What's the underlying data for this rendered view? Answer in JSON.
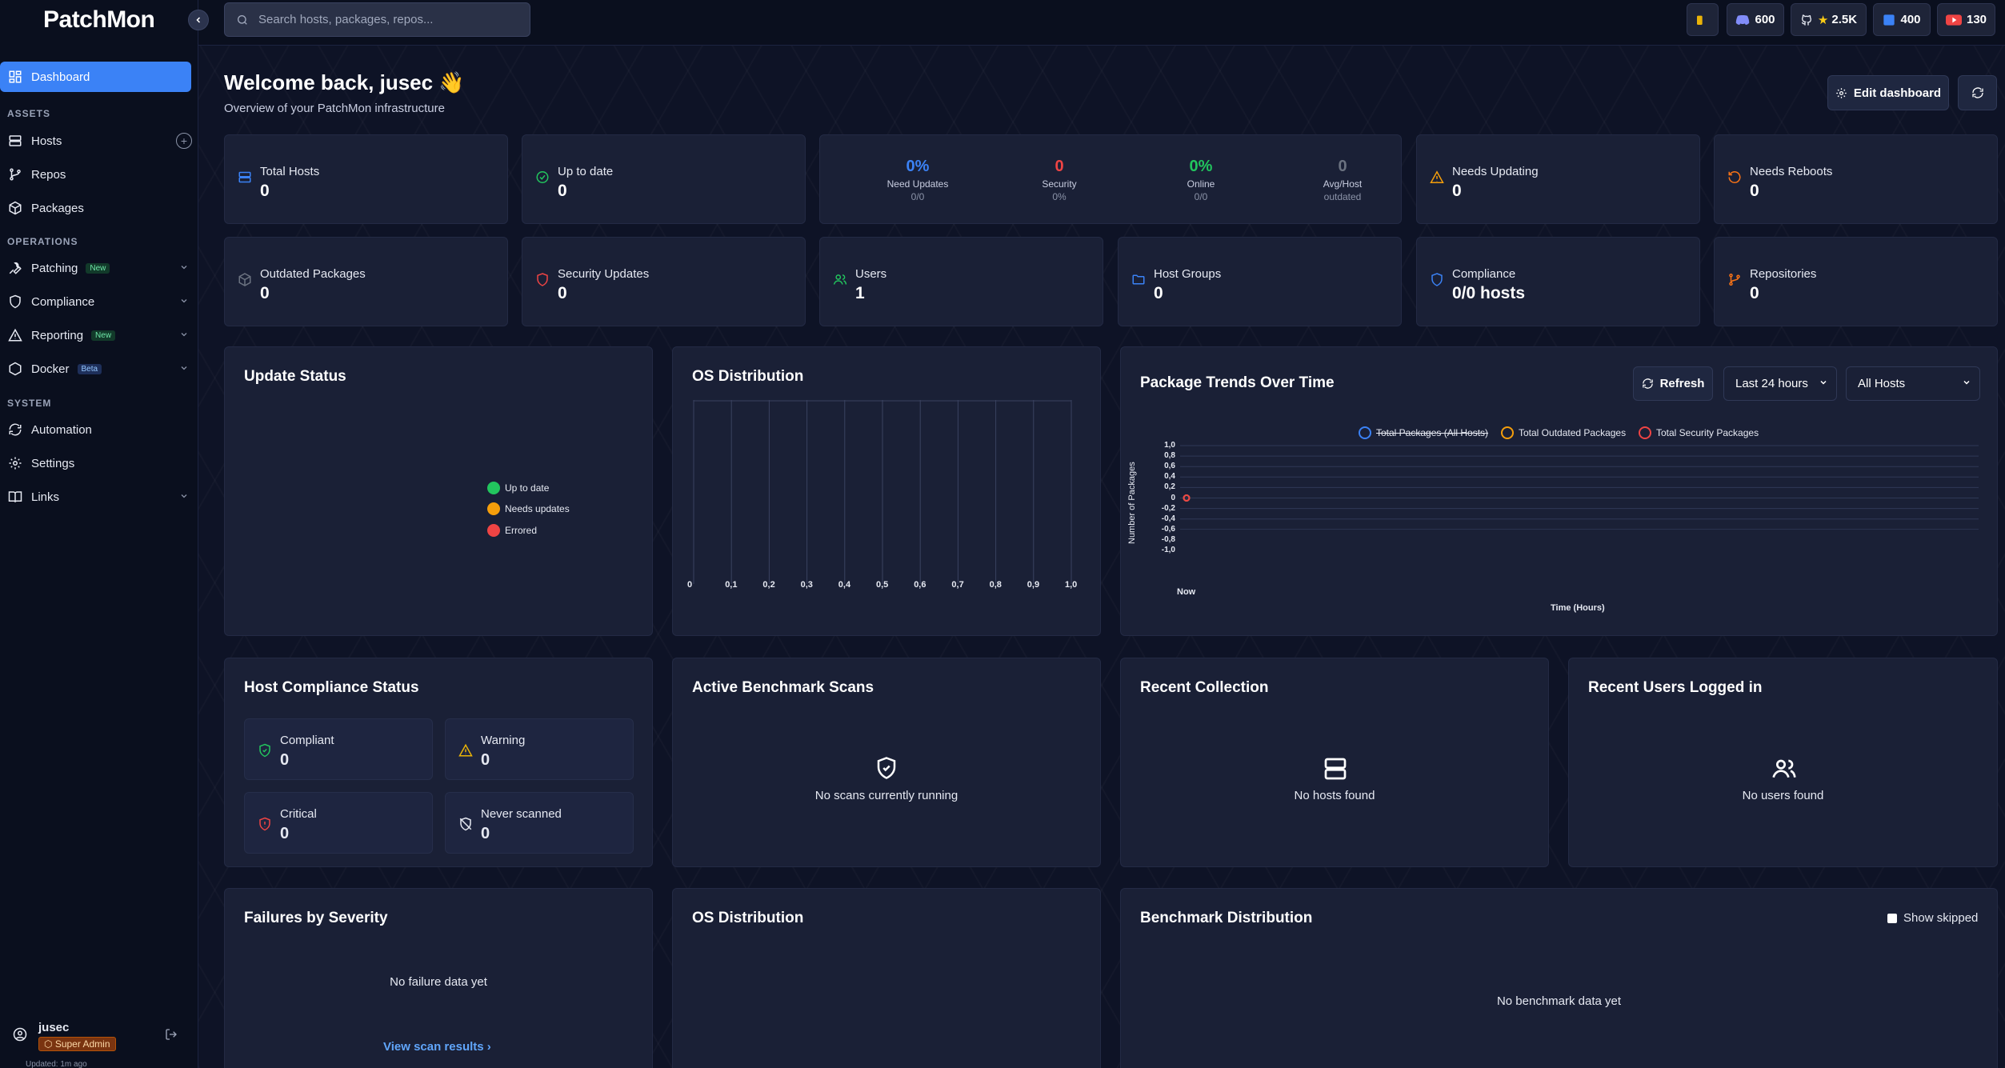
{
  "app": {
    "logo": "PatchMon"
  },
  "sidebar": {
    "dashboard": "Dashboard",
    "sections": {
      "assets": "ASSETS",
      "operations": "OPERATIONS",
      "system": "SYSTEM"
    },
    "items": {
      "hosts": "Hosts",
      "repos": "Repos",
      "packages": "Packages",
      "patching": "Patching",
      "compliance": "Compliance",
      "reporting": "Reporting",
      "docker": "Docker",
      "automation": "Automation",
      "settings": "Settings",
      "links": "Links"
    },
    "badges": {
      "new": "New",
      "beta": "Beta"
    },
    "user": {
      "name": "jusec",
      "role": "Super Admin",
      "updated": "Updated: 1m ago"
    }
  },
  "topbar": {
    "search_placeholder": "Search hosts, packages, repos...",
    "discord_count": "600",
    "github_stars": "2.5K",
    "linkedin_count": "400",
    "youtube_count": "130"
  },
  "header": {
    "welcome": "Welcome back, jusec",
    "wave": "👋",
    "subtitle": "Overview of your PatchMon infrastructure",
    "edit_dashboard": "Edit dashboard"
  },
  "stats": {
    "total_hosts": {
      "label": "Total Hosts",
      "value": "0"
    },
    "up_to_date": {
      "label": "Up to date",
      "value": "0"
    },
    "summary": [
      {
        "value": "0%",
        "label": "Need Updates",
        "sub": "0/0",
        "color": "#3b82f6"
      },
      {
        "value": "0",
        "label": "Security",
        "sub": "0%",
        "color": "#ef4444"
      },
      {
        "value": "0%",
        "label": "Online",
        "sub": "0/0",
        "color": "#22c55e"
      },
      {
        "value": "0",
        "label": "Avg/Host",
        "sub": "outdated",
        "color": "#6b7280"
      }
    ],
    "needs_updating": {
      "label": "Needs Updating",
      "value": "0"
    },
    "needs_reboots": {
      "label": "Needs Reboots",
      "value": "0"
    },
    "outdated_packages": {
      "label": "Outdated Packages",
      "value": "0"
    },
    "security_updates": {
      "label": "Security Updates",
      "value": "0"
    },
    "users": {
      "label": "Users",
      "value": "1"
    },
    "host_groups": {
      "label": "Host Groups",
      "value": "0"
    },
    "compliance": {
      "label": "Compliance",
      "value": "0/0 hosts"
    },
    "repositories": {
      "label": "Repositories",
      "value": "0"
    }
  },
  "update_status": {
    "title": "Update Status",
    "legend": [
      {
        "label": "Up to date",
        "color": "#22c55e"
      },
      {
        "label": "Needs updates",
        "color": "#f59e0b"
      },
      {
        "label": "Errored",
        "color": "#ef4444"
      }
    ]
  },
  "os_distribution": {
    "title": "OS Distribution",
    "ticks": [
      "0",
      "0,1",
      "0,2",
      "0,3",
      "0,4",
      "0,5",
      "0,6",
      "0,7",
      "0,8",
      "0,9",
      "1,0"
    ]
  },
  "package_trends": {
    "title": "Package Trends Over Time",
    "refresh": "Refresh",
    "range": "Last 24 hours",
    "hosts": "All Hosts",
    "legend": [
      {
        "label": "Total Packages (All Hosts)",
        "color": "#3b82f6"
      },
      {
        "label": "Total Outdated Packages",
        "color": "#f59e0b"
      },
      {
        "label": "Total Security Packages",
        "color": "#ef4444"
      }
    ],
    "y_ticks": [
      "1,0",
      "0,8",
      "0,6",
      "0,4",
      "0,2",
      "0",
      "-0,2",
      "-0,4",
      "-0,6",
      "-0,8",
      "-1,0"
    ],
    "x_tick": "Now",
    "ylabel": "Number of Packages",
    "xlabel": "Time (Hours)"
  },
  "host_compliance": {
    "title": "Host Compliance Status",
    "items": [
      {
        "label": "Compliant",
        "value": "0"
      },
      {
        "label": "Warning",
        "value": "0"
      },
      {
        "label": "Critical",
        "value": "0"
      },
      {
        "label": "Never scanned",
        "value": "0"
      }
    ]
  },
  "benchmark_scans": {
    "title": "Active Benchmark Scans",
    "empty": "No scans currently running"
  },
  "recent_collection": {
    "title": "Recent Collection",
    "empty": "No hosts found"
  },
  "recent_users": {
    "title": "Recent Users Logged in",
    "empty": "No users found"
  },
  "failures": {
    "title": "Failures by Severity",
    "empty": "No failure data yet",
    "link": "View scan results"
  },
  "os_distribution_2": {
    "title": "OS Distribution"
  },
  "benchmark_distribution": {
    "title": "Benchmark Distribution",
    "show_skipped": "Show skipped",
    "empty": "No benchmark data yet"
  },
  "chart_data": [
    {
      "type": "bar",
      "title": "OS Distribution",
      "xlim": [
        0,
        1.0
      ],
      "x_ticks": [
        "0",
        "0,1",
        "0,2",
        "0,3",
        "0,4",
        "0,5",
        "0,6",
        "0,7",
        "0,8",
        "0,9",
        "1,0"
      ],
      "categories": [],
      "values": []
    },
    {
      "type": "line",
      "title": "Package Trends Over Time",
      "xlabel": "Time (Hours)",
      "ylabel": "Number of Packages",
      "ylim": [
        -1.0,
        1.0
      ],
      "x": [
        "Now"
      ],
      "series": [
        {
          "name": "Total Packages (All Hosts)",
          "values": [
            0
          ]
        },
        {
          "name": "Total Outdated Packages",
          "values": [
            0
          ]
        },
        {
          "name": "Total Security Packages",
          "values": [
            0
          ]
        }
      ],
      "legend": "top"
    }
  ]
}
